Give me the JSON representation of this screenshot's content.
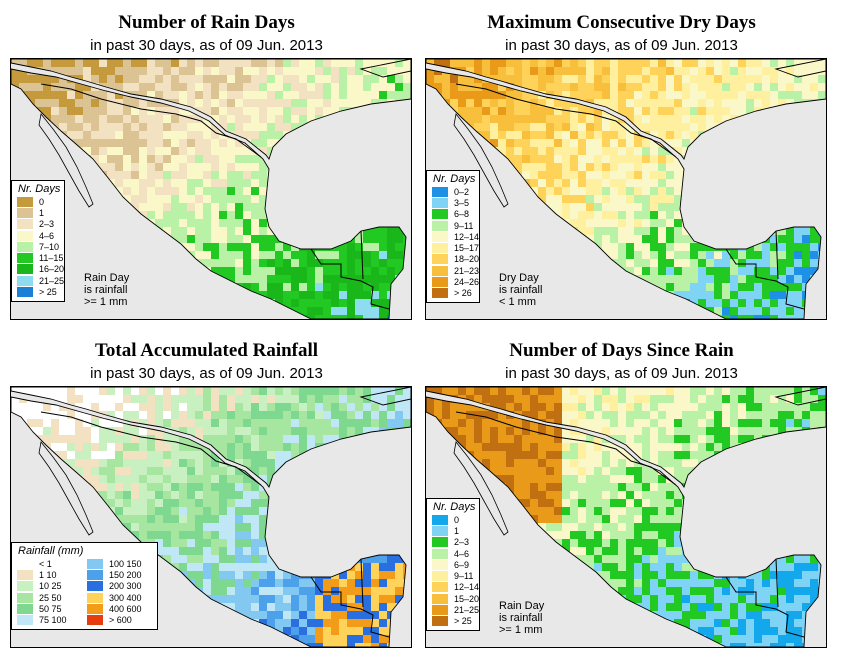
{
  "panels": [
    {
      "title": "Number of Rain Days",
      "subtitle": "in past 30 days, as of  09 Jun. 2013",
      "legend_title": "Nr. Days",
      "legend": [
        {
          "label": "0",
          "color": "#c59a3c"
        },
        {
          "label": "1",
          "color": "#dcc394"
        },
        {
          "label": "2–3",
          "color": "#f2e2c2"
        },
        {
          "label": "4–6",
          "color": "#faf7c8"
        },
        {
          "label": "7–10",
          "color": "#b9f2a6"
        },
        {
          "label": "11–15",
          "color": "#22c922"
        },
        {
          "label": "16–20",
          "color": "#19b719"
        },
        {
          "label": "21–25",
          "color": "#8edcf0"
        },
        {
          "label": "> 25",
          "color": "#1c7fd6"
        }
      ],
      "note_lines": [
        "Rain Day",
        "is rainfall",
        ">= 1 mm"
      ]
    },
    {
      "title": "Maximum Consecutive Dry Days",
      "subtitle": "in past 30 days, as of  09 Jun. 2013",
      "legend_title": "Nr. Days",
      "legend": [
        {
          "label": "0–2",
          "color": "#1e90e6"
        },
        {
          "label": "3–5",
          "color": "#7fd3f5"
        },
        {
          "label": "6–8",
          "color": "#22c922"
        },
        {
          "label": "9–11",
          "color": "#b9f2a6"
        },
        {
          "label": "12–14",
          "color": "#faf7c8"
        },
        {
          "label": "15–17",
          "color": "#fff0a0"
        },
        {
          "label": "18–20",
          "color": "#ffd35a"
        },
        {
          "label": "21–23",
          "color": "#f7bf3c"
        },
        {
          "label": "24–26",
          "color": "#e89a18"
        },
        {
          "label": "> 26",
          "color": "#c07010"
        }
      ],
      "note_lines": [
        "Dry Day",
        "is rainfall",
        "< 1 mm"
      ]
    },
    {
      "title": "Total Accumulated Rainfall",
      "subtitle": "in past 30 days, as of  09 Jun. 2013",
      "legend_title": "Rainfall (mm)",
      "legend": [
        {
          "label": "< 1",
          "color": "#ffffff"
        },
        {
          "label": "1    10",
          "color": "#f2e2c2"
        },
        {
          "label": "10    25",
          "color": "#c9f0c0"
        },
        {
          "label": "25    50",
          "color": "#a6e6a0"
        },
        {
          "label": "50    75",
          "color": "#7fd88f"
        },
        {
          "label": "75   100",
          "color": "#bfe7f5"
        },
        {
          "label": "100  150",
          "color": "#82c8f0"
        },
        {
          "label": "150  200",
          "color": "#4da0ea"
        },
        {
          "label": "200  300",
          "color": "#2a6fe0"
        },
        {
          "label": "300  400",
          "color": "#ffd35a"
        },
        {
          "label": "400  600",
          "color": "#f39c1a"
        },
        {
          "label": "> 600",
          "color": "#e83c10"
        }
      ],
      "note_lines": []
    },
    {
      "title": "Number of Days Since Rain",
      "subtitle": "in past 30 days, as of  09 Jun. 2013",
      "legend_title": "Nr. Days",
      "legend": [
        {
          "label": "0",
          "color": "#13a8ec"
        },
        {
          "label": "1",
          "color": "#7fd3f5"
        },
        {
          "label": "2–3",
          "color": "#22c922"
        },
        {
          "label": "4–6",
          "color": "#b9f2a6"
        },
        {
          "label": "6–9",
          "color": "#faf7c8"
        },
        {
          "label": "9–11",
          "color": "#fff0a0"
        },
        {
          "label": "12–14",
          "color": "#ffd35a"
        },
        {
          "label": "15–20",
          "color": "#f7bf3c"
        },
        {
          "label": "21–25",
          "color": "#e89a18"
        },
        {
          "label": "> 25",
          "color": "#c07010"
        }
      ],
      "note_lines": [
        "Rain Day",
        "is rainfall",
        ">= 1 mm"
      ]
    }
  ],
  "colors": {
    "water": "#e8e8e8",
    "border": "#000000"
  }
}
